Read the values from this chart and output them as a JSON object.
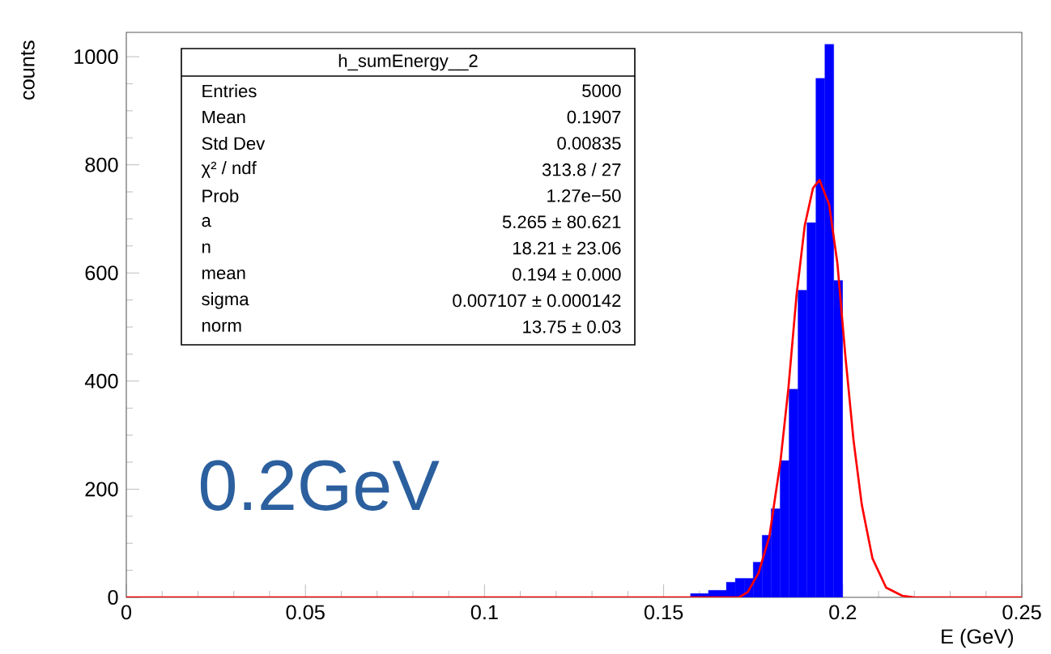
{
  "chart_data": {
    "type": "histogram",
    "xlabel": "E (GeV)",
    "ylabel": "counts",
    "xlim": [
      0,
      0.25
    ],
    "ylim": [
      0,
      1045
    ],
    "xticks": [
      0,
      0.05,
      0.1,
      0.15,
      0.2,
      0.25
    ],
    "yticks": [
      0,
      200,
      400,
      600,
      800,
      1000
    ],
    "series": [
      {
        "color": "#0000ff",
        "bins": [
          0.1575,
          0.16,
          0.1625,
          0.165,
          0.1675,
          0.17,
          0.1725,
          0.175,
          0.1775,
          0.18,
          0.1825,
          0.185,
          0.1875,
          0.19,
          0.1925,
          0.195,
          0.1975,
          0.2
        ],
        "values": [
          7,
          7,
          13,
          13,
          28,
          35,
          35,
          65,
          115,
          164,
          253,
          385,
          568,
          693,
          960,
          1023,
          586
        ]
      },
      {
        "type": "line",
        "color": "#ff0000",
        "x": [
          0,
          0.16,
          0.1711,
          0.1735,
          0.1765,
          0.1795,
          0.1826,
          0.1848,
          0.1871,
          0.1894,
          0.1917,
          0.1935,
          0.1962,
          0.1985,
          0.2007,
          0.203,
          0.2053,
          0.2083,
          0.2121,
          0.2166,
          0.22,
          0.25
        ],
        "values": [
          0,
          0,
          0,
          10,
          45,
          112,
          251,
          385,
          559,
          688,
          757,
          772,
          727,
          618,
          449,
          291,
          172,
          72,
          18,
          3,
          0,
          0
        ]
      }
    ],
    "annotations": [
      "h_sumEnergy__2",
      "Entries",
      "5000",
      "Mean",
      "0.1907",
      "Std Dev",
      "0.00835",
      "χ² / ndf",
      "313.8 / 27",
      "Prob",
      "1.27e−50",
      "a",
      "5.265  ± 80.621",
      "n",
      "18.21  ± 23.06",
      "mean",
      "0.194  ± 0.000",
      "sigma",
      "0.007107  ± 0.000142",
      "norm",
      "13.75  ± 0.03",
      "0.2GeV"
    ]
  }
}
